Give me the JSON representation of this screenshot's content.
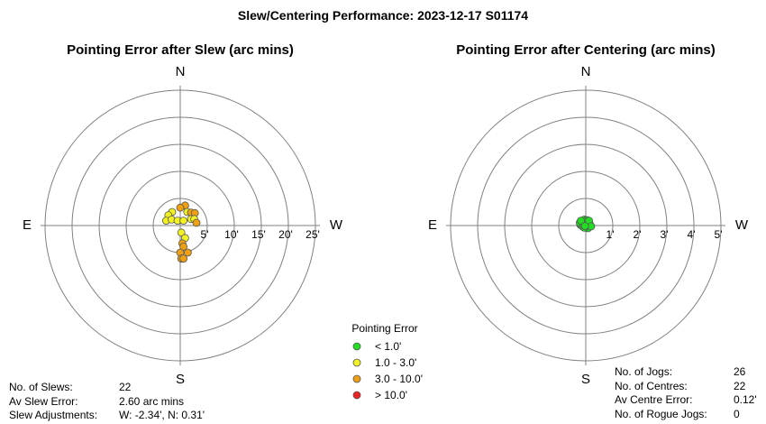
{
  "title": "Slew/Centering Performance: 2023-12-17 S01174",
  "chart_data": [
    {
      "type": "scatter",
      "subtype": "polar",
      "title": "Pointing Error after Slew (arc mins)",
      "compass": {
        "n": "N",
        "s": "S",
        "e": "E",
        "w": "W"
      },
      "ring_labels": [
        "5'",
        "10'",
        "15'",
        "20'",
        "25'"
      ],
      "ring_values": [
        5,
        10,
        15,
        20,
        25
      ],
      "max_radius": 25,
      "points": [
        {
          "w": 0.9,
          "n": 3.7
        },
        {
          "w": 0.0,
          "n": 3.3
        },
        {
          "w": 1.3,
          "n": 2.5
        },
        {
          "w": 2.0,
          "n": 2.4
        },
        {
          "w": 2.7,
          "n": 2.3
        },
        {
          "w": 2.0,
          "n": 1.2
        },
        {
          "w": 2.6,
          "n": 1.2
        },
        {
          "w": 3.0,
          "n": 0.5
        },
        {
          "w": -1.5,
          "n": 2.5
        },
        {
          "w": -2.2,
          "n": 1.9
        },
        {
          "w": -2.6,
          "n": 0.9
        },
        {
          "w": -1.6,
          "n": 1.1
        },
        {
          "w": -0.5,
          "n": 0.9
        },
        {
          "w": 0.6,
          "n": 0.9
        },
        {
          "w": 0.2,
          "n": -1.3
        },
        {
          "w": 0.9,
          "n": -2.3
        },
        {
          "w": 0.4,
          "n": -3.3
        },
        {
          "w": 0.6,
          "n": -3.9
        },
        {
          "w": 0.0,
          "n": -5.0
        },
        {
          "w": 0.2,
          "n": -6.1
        },
        {
          "w": 1.4,
          "n": -5.0
        },
        {
          "w": 0.6,
          "n": -6.1
        }
      ]
    },
    {
      "type": "scatter",
      "subtype": "polar",
      "title": "Pointing Error after Centering (arc mins)",
      "compass": {
        "n": "N",
        "s": "S",
        "e": "E",
        "w": "W"
      },
      "ring_labels": [
        "1'",
        "2'",
        "3'",
        "4'",
        "5'"
      ],
      "ring_values": [
        1,
        2,
        3,
        4,
        5
      ],
      "max_radius": 5,
      "points": [
        {
          "w": -0.05,
          "n": 0.22
        },
        {
          "w": 0.05,
          "n": 0.2
        },
        {
          "w": -0.12,
          "n": 0.12
        },
        {
          "w": 0.0,
          "n": 0.08
        },
        {
          "w": 0.1,
          "n": 0.1
        },
        {
          "w": -0.2,
          "n": 0.03
        },
        {
          "w": -0.12,
          "n": -0.02
        },
        {
          "w": 0.02,
          "n": -0.05
        },
        {
          "w": 0.12,
          "n": 0.0
        },
        {
          "w": -0.22,
          "n": 0.1
        },
        {
          "w": -0.08,
          "n": 0.05
        },
        {
          "w": 0.05,
          "n": 0.12
        },
        {
          "w": 0.1,
          "n": -0.08
        },
        {
          "w": 0.15,
          "n": 0.05
        },
        {
          "w": 0.08,
          "n": -0.1
        },
        {
          "w": -0.1,
          "n": -0.05
        },
        {
          "w": 0.0,
          "n": 0.15
        },
        {
          "w": -0.05,
          "n": -0.08
        },
        {
          "w": 0.12,
          "n": 0.18
        },
        {
          "w": -0.18,
          "n": 0.18
        },
        {
          "w": 0.2,
          "n": -0.03
        },
        {
          "w": -0.03,
          "n": -0.02
        }
      ]
    }
  ],
  "legend": {
    "title": "Pointing Error",
    "items": [
      {
        "label": "< 1.0'",
        "color": "#22dd22",
        "min": 0,
        "max": 1.0
      },
      {
        "label": "1.0 - 3.0'",
        "color": "#f2f222",
        "min": 1.0,
        "max": 3.0
      },
      {
        "label": "3.0 - 10.0'",
        "color": "#eea011",
        "min": 3.0,
        "max": 10.0
      },
      {
        "label": "> 10.0'",
        "color": "#ee2222",
        "min": 10.0,
        "max": 9999
      }
    ]
  },
  "stats_left": [
    {
      "key": "No. of Slews:",
      "value": "22"
    },
    {
      "key": "Av Slew Error:",
      "value": "2.60 arc mins"
    },
    {
      "key": "Slew Adjustments:",
      "value": "W: -2.34', N: 0.31'"
    }
  ],
  "stats_right": [
    {
      "key": "No. of Jogs:",
      "value": "26"
    },
    {
      "key": "No. of Centres:",
      "value": "22"
    },
    {
      "key": "Av Centre Error:",
      "value": "0.12'"
    },
    {
      "key": "No. of Rogue Jogs:",
      "value": "0"
    }
  ]
}
